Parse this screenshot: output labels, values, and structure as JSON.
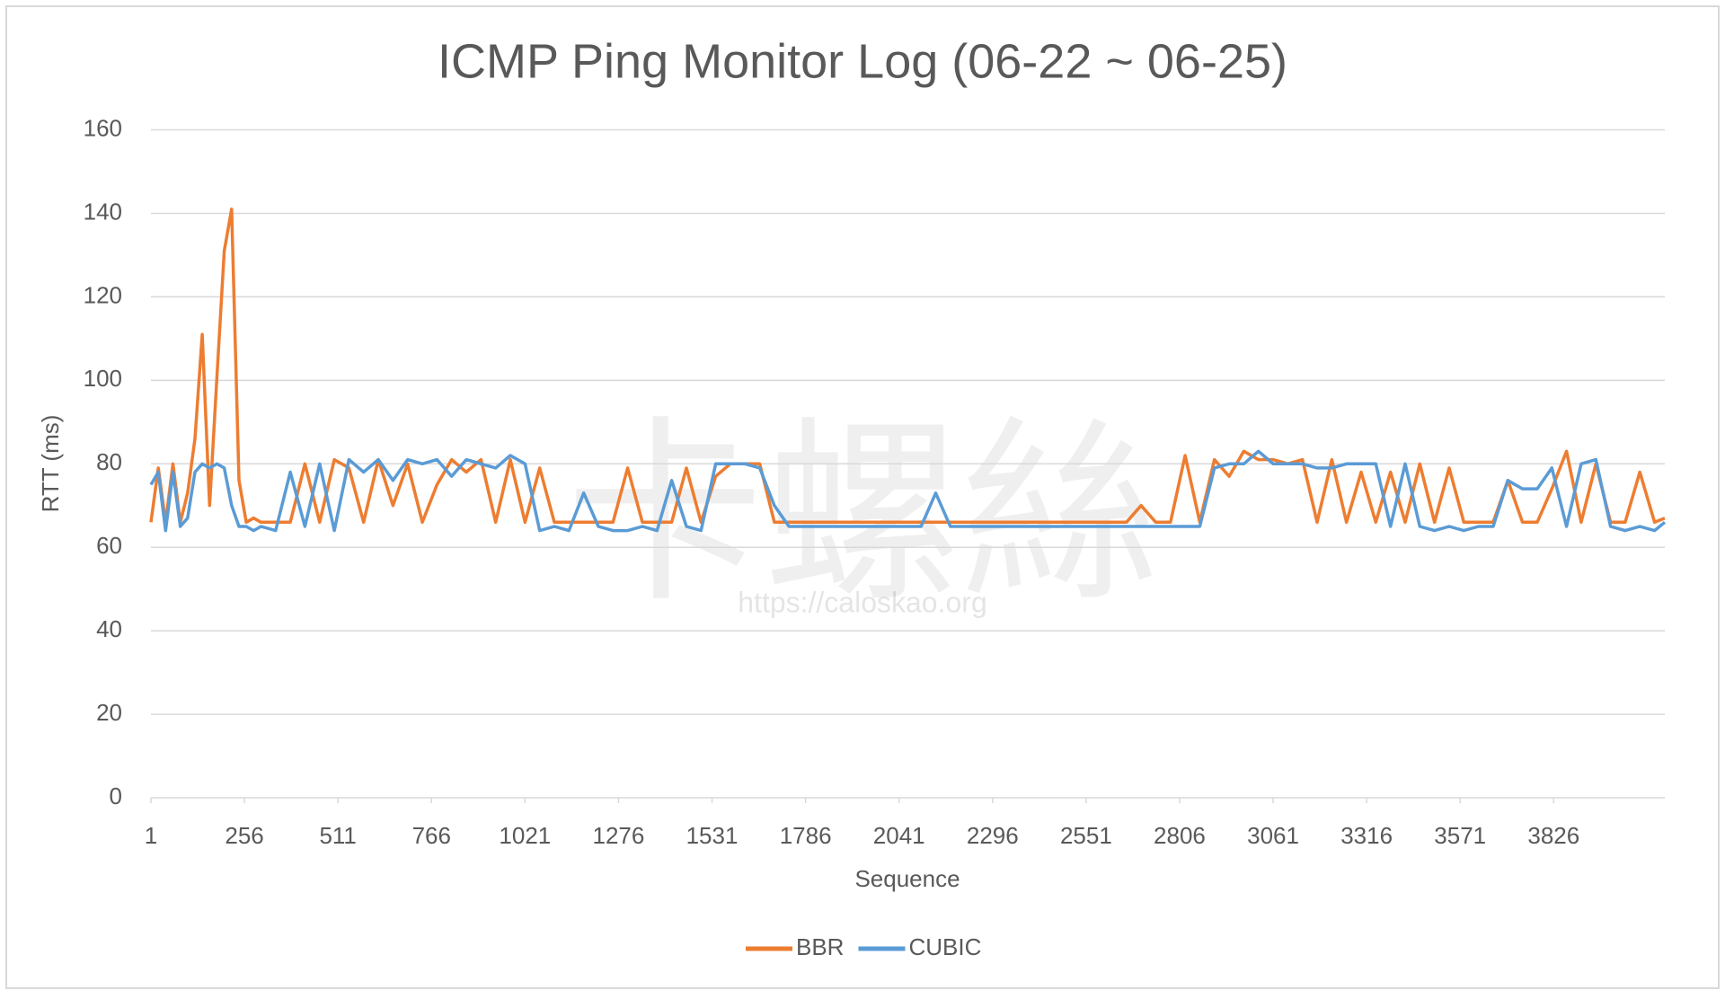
{
  "chart_data": {
    "type": "line",
    "title": "ICMP Ping Monitor Log (06-22 ~ 06-25)",
    "x_label": "Sequence",
    "y_label": "RTT (ms)",
    "watermark_text": "卡螺絲",
    "watermark_url": "https://caloskao.org",
    "xlim": [
      1,
      4129
    ],
    "xticks": [
      1,
      256,
      511,
      766,
      1021,
      1276,
      1531,
      1786,
      2041,
      2296,
      2551,
      2806,
      3061,
      3316,
      3571,
      3826
    ],
    "ylim": [
      0,
      160
    ],
    "yticks": [
      0,
      20,
      40,
      60,
      80,
      100,
      120,
      140,
      160
    ],
    "grid": true,
    "legend": "bottom",
    "x": [
      1,
      21,
      41,
      61,
      81,
      101,
      121,
      141,
      161,
      181,
      201,
      221,
      241,
      261,
      281,
      301,
      341,
      381,
      421,
      461,
      501,
      541,
      581,
      621,
      661,
      701,
      741,
      781,
      821,
      861,
      901,
      941,
      981,
      1021,
      1061,
      1101,
      1141,
      1181,
      1221,
      1261,
      1301,
      1341,
      1381,
      1421,
      1461,
      1501,
      1541,
      1581,
      1621,
      1661,
      1701,
      1741,
      1781,
      1821,
      1861,
      1901,
      1941,
      1981,
      2021,
      2061,
      2101,
      2141,
      2181,
      2221,
      2261,
      2301,
      2341,
      2381,
      2421,
      2461,
      2501,
      2541,
      2581,
      2621,
      2661,
      2701,
      2741,
      2781,
      2821,
      2861,
      2901,
      2941,
      2981,
      3021,
      3061,
      3101,
      3141,
      3181,
      3221,
      3261,
      3301,
      3341,
      3381,
      3421,
      3461,
      3501,
      3541,
      3581,
      3621,
      3661,
      3701,
      3741,
      3781,
      3821,
      3861,
      3901,
      3941,
      3981,
      4021,
      4061,
      4101,
      4129
    ],
    "series": [
      {
        "name": "BBR",
        "color": "#ed7d31",
        "values": [
          66,
          79,
          66,
          80,
          66,
          73,
          86,
          111,
          70,
          101,
          131,
          141,
          76,
          66,
          67,
          66,
          66,
          66,
          80,
          66,
          81,
          79,
          66,
          81,
          70,
          80,
          66,
          75,
          81,
          78,
          81,
          66,
          81,
          66,
          79,
          66,
          66,
          66,
          66,
          66,
          79,
          66,
          66,
          66,
          79,
          66,
          77,
          80,
          80,
          80,
          66,
          66,
          66,
          66,
          66,
          66,
          66,
          66,
          66,
          66,
          66,
          66,
          66,
          66,
          66,
          66,
          66,
          66,
          66,
          66,
          66,
          66,
          66,
          66,
          66,
          70,
          66,
          66,
          82,
          66,
          81,
          77,
          83,
          81,
          81,
          80,
          81,
          66,
          81,
          66,
          78,
          66,
          78,
          66,
          80,
          66,
          79,
          66,
          66,
          66,
          76,
          66,
          66,
          74,
          83,
          66,
          80,
          66,
          66,
          78,
          66,
          67
        ]
      },
      {
        "name": "CUBIC",
        "color": "#5b9bd5",
        "values": [
          75,
          78,
          64,
          78,
          65,
          67,
          78,
          80,
          79,
          80,
          79,
          70,
          65,
          65,
          64,
          65,
          64,
          78,
          65,
          80,
          64,
          81,
          78,
          81,
          76,
          81,
          80,
          81,
          77,
          81,
          80,
          79,
          82,
          80,
          64,
          65,
          64,
          73,
          65,
          64,
          64,
          65,
          64,
          76,
          65,
          64,
          80,
          80,
          80,
          79,
          70,
          65,
          65,
          65,
          65,
          65,
          65,
          65,
          65,
          65,
          65,
          73,
          65,
          65,
          65,
          65,
          65,
          65,
          65,
          65,
          65,
          65,
          65,
          65,
          65,
          65,
          65,
          65,
          65,
          65,
          79,
          80,
          80,
          83,
          80,
          80,
          80,
          79,
          79,
          80,
          80,
          80,
          65,
          80,
          65,
          64,
          65,
          64,
          65,
          65,
          76,
          74,
          74,
          79,
          65,
          80,
          81,
          65,
          64,
          65,
          64,
          66
        ]
      }
    ]
  }
}
